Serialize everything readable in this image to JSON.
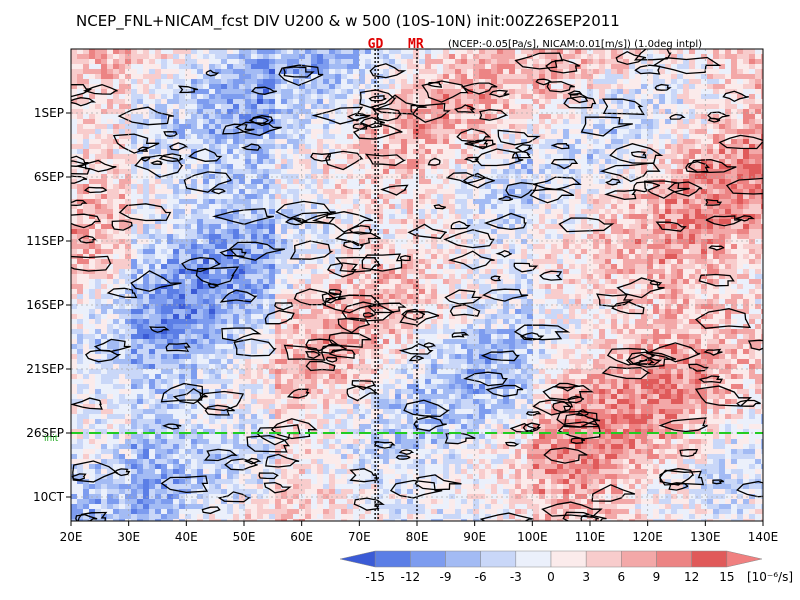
{
  "chart_data": {
    "type": "heatmap",
    "title": "NCEP_FNL+NICAM_fcst DIV U200 & w 500 (10S-10N) init:00Z26SEP2011",
    "subtitle": "(NCEP:-0.05[Pa/s], NICAM:0.01[m/s]) (1.0deg intpl)",
    "x_axis": {
      "range": [
        "20E",
        "140E"
      ],
      "tick_labels": [
        "20E",
        "30E",
        "40E",
        "50E",
        "60E",
        "70E",
        "80E",
        "90E",
        "100E",
        "110E",
        "120E",
        "130E",
        "140E"
      ]
    },
    "y_axis": {
      "tick_labels": [
        "1SEP",
        "6SEP",
        "11SEP",
        "16SEP",
        "21SEP",
        "26SEP",
        "10CT"
      ],
      "init_label": "init"
    },
    "markers": [
      {
        "label": "GD",
        "lon": "73E"
      },
      {
        "label": "MR",
        "lon": "80E"
      }
    ],
    "init_line_date": "26SEP",
    "colorbar": {
      "ticks": [
        "-15",
        "-12",
        "-9",
        "-6",
        "-3",
        "0",
        "3",
        "6",
        "9",
        "12",
        "15"
      ],
      "unit": "[10⁻⁶/s]",
      "colors": [
        "#3b5bd6",
        "#5b7ee6",
        "#7d9cef",
        "#a3bbf4",
        "#c9d7f8",
        "#ebf0fb",
        "#fbebeb",
        "#f8cccc",
        "#f3a8a8",
        "#ec8484",
        "#e05a5a",
        "#f08080"
      ]
    }
  }
}
